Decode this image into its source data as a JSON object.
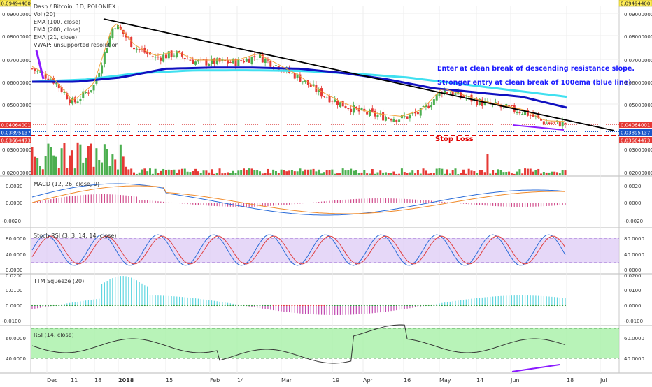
{
  "header": {
    "symbol_title": "Dash / Bitcoin, 1D, POLONIEX",
    "indicators": [
      "Vol (20)",
      "EMA (100, close)",
      "EMA (200, close)",
      "EMA (21, close)",
      "VWAP: unsupported resolution"
    ]
  },
  "price_badges": {
    "top_left": "0.09494400",
    "top_right": "0.09494400",
    "last_left": "0.04064001",
    "last_right": "0.04064001",
    "support_left": "0.03895137",
    "support_right": "0.03895137",
    "stop_left": "0.03664473",
    "stop_right": "0.03664473"
  },
  "annotations": {
    "entry_break": "Enter at clean break of descending resistance slope.",
    "entry_ema": "Stronger entry at clean break of 100ema (blue line)",
    "stop_loss": "Stop Loss"
  },
  "pane_titles": {
    "macd": "MACD (12, 26, close, 9)",
    "stoch": "Stoch RSI (3, 3, 14, 14, close)",
    "ttm": "TTM Squeeze (20)",
    "rsi": "RSI (14, close)"
  },
  "colors": {
    "up": "#4caf50",
    "down": "#e53935",
    "ema100": "#1010c0",
    "ema200": "#40e0f0",
    "ema21": "#f2a33a",
    "trendline": "#000000",
    "annotation_text": "#1a1aff",
    "stop": "#e00000",
    "support_badge": "#1a56c9",
    "divergence": "#8a1aff"
  },
  "chart_data": [
    {
      "type": "candlestick",
      "title": "Dash / Bitcoin, 1D, POLONIEX",
      "x_ticks": [
        "Dec",
        "11",
        "18",
        "2018",
        "15",
        "Feb",
        "14",
        "Mar",
        "19",
        "Apr",
        "16",
        "May",
        "14",
        "Jun",
        "18",
        "Jul"
      ],
      "y_ticks": [
        "0.09000000",
        "0.08000000",
        "0.07000000",
        "0.06000000",
        "0.05000000",
        "0.04000000"
      ],
      "ylim": [
        0.038,
        0.0949
      ],
      "approx_close_trend": [
        0.066,
        0.061,
        0.05,
        0.058,
        0.087,
        0.076,
        0.071,
        0.073,
        0.069,
        0.069,
        0.069,
        0.072,
        0.067,
        0.062,
        0.055,
        0.05,
        0.046,
        0.044,
        0.043,
        0.046,
        0.056,
        0.053,
        0.05,
        0.048,
        0.046,
        0.041,
        0.0406
      ],
      "ema100_approx": [
        0.06,
        0.06,
        0.062,
        0.066,
        0.0665,
        0.0665,
        0.066,
        0.064,
        0.061,
        0.057,
        0.055,
        0.053,
        0.048
      ],
      "ema200_approx": [
        0.06,
        0.061,
        0.064,
        0.0652,
        0.0653,
        0.065,
        0.0638,
        0.062,
        0.059,
        0.056,
        0.053
      ],
      "levels": {
        "last_price": 0.04064001,
        "support": 0.03895137,
        "stop_loss": 0.03664473
      },
      "volume_y_ticks": [
        "0.03000000",
        "0.02000000"
      ]
    },
    {
      "type": "line",
      "title": "MACD (12, 26, close, 9)",
      "y_ticks": [
        "0.0020",
        "0.0000",
        "-0.0020"
      ],
      "ylim": [
        -0.0025,
        0.0025
      ]
    },
    {
      "type": "line",
      "title": "Stoch RSI (3, 3, 14, 14, close)",
      "y_ticks": [
        "80.0000",
        "40.0000",
        "0.0000"
      ],
      "ylim": [
        0,
        100
      ],
      "band": [
        20,
        80
      ]
    },
    {
      "type": "bar",
      "title": "TTM Squeeze (20)",
      "y_ticks": [
        "0.0200",
        "0.0100",
        "0.0000",
        "-0.0100"
      ],
      "ylim": [
        -0.013,
        0.02
      ]
    },
    {
      "type": "line",
      "title": "RSI (14, close)",
      "y_ticks": [
        "60.0000",
        "40.0000"
      ],
      "ylim": [
        27,
        73
      ],
      "band": [
        30,
        70
      ]
    }
  ]
}
